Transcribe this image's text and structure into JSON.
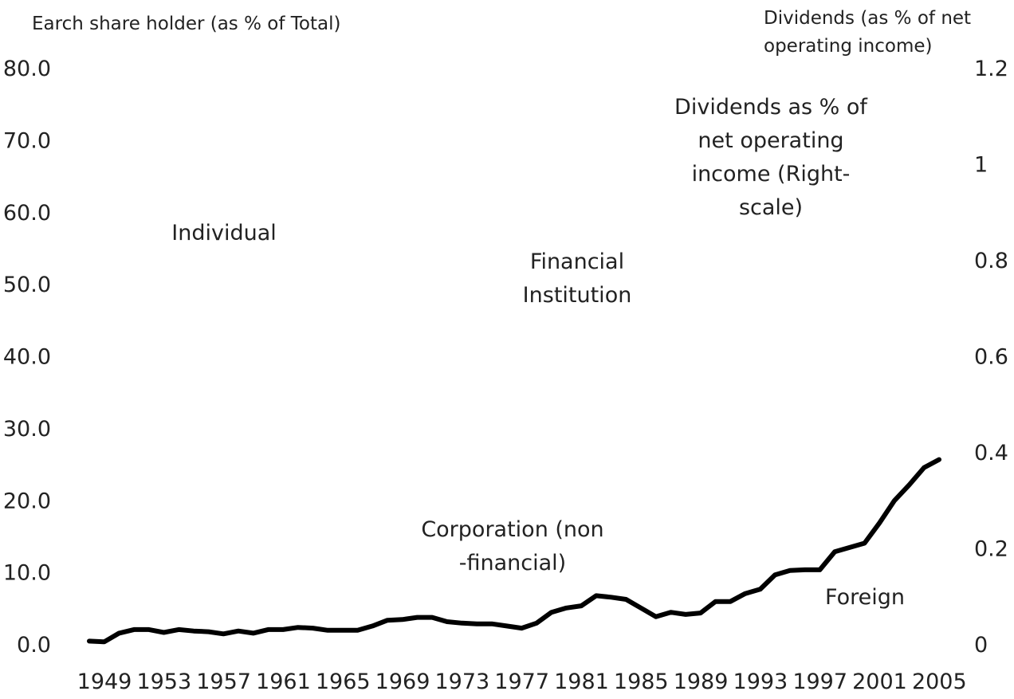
{
  "chart_data": {
    "type": "line",
    "left_axis_title": "Earch share holder (as % of Total)",
    "right_axis_title": [
      "Dividends (as % of net",
      "operating income)"
    ],
    "ylim": [
      0,
      80
    ],
    "y2lim": [
      0,
      1.2
    ],
    "yticks": [
      "0.0",
      "10.0",
      "20.0",
      "30.0",
      "40.0",
      "50.0",
      "60.0",
      "70.0",
      "80.0"
    ],
    "y2ticks": [
      "0",
      "0.2",
      "0.4",
      "0.6",
      "0.8",
      "1",
      "1.2"
    ],
    "xticks": [
      "1949",
      "1953",
      "1957",
      "1961",
      "1965",
      "1969",
      "1973",
      "1977",
      "1981",
      "1985",
      "1989",
      "1993",
      "1997",
      "2001",
      "2005"
    ],
    "annotations": [
      {
        "id": "individual",
        "lines": [
          "Individual"
        ]
      },
      {
        "id": "financial",
        "lines": [
          "Financial",
          "Institution"
        ]
      },
      {
        "id": "dividends",
        "lines": [
          "Dividends as % of",
          "net operating",
          "income (Right-",
          "scale)"
        ]
      },
      {
        "id": "corporation",
        "lines": [
          "Corporation (non",
          "-financial)"
        ]
      },
      {
        "id": "foreign",
        "lines": [
          "Foreign"
        ]
      }
    ],
    "series": [
      {
        "color": "#000000",
        "x": [
          1949,
          1950,
          1951,
          1952,
          1953,
          1954,
          1955,
          1956,
          1957,
          1958,
          1959,
          1960,
          1961,
          1962,
          1963,
          1964,
          1965,
          1966,
          1967,
          1968,
          1969,
          1970,
          1971,
          1972,
          1973,
          1974,
          1975,
          1976,
          1977,
          1978,
          1979,
          1980,
          1981,
          1982,
          1983,
          1984,
          1985,
          1986,
          1987,
          1988,
          1989,
          1990,
          1991,
          1992,
          1993,
          1994,
          1995,
          1996,
          1997,
          1998,
          1999,
          2000,
          2001,
          2002,
          2003,
          2004,
          2005,
          2006
        ],
        "values": [
          0.4,
          0.3,
          1.5,
          2.0,
          2.0,
          1.6,
          2.0,
          1.8,
          1.7,
          1.4,
          1.8,
          1.5,
          2.0,
          2.0,
          2.3,
          2.2,
          1.9,
          1.9,
          1.9,
          2.5,
          3.3,
          3.4,
          3.7,
          3.7,
          3.1,
          2.9,
          2.8,
          2.8,
          2.5,
          2.2,
          2.9,
          4.4,
          5.0,
          5.3,
          6.7,
          6.5,
          6.2,
          5.0,
          3.8,
          4.4,
          4.1,
          4.3,
          5.9,
          5.9,
          7.0,
          7.6,
          9.6,
          10.2,
          10.3,
          10.3,
          12.8,
          13.4,
          14.0,
          16.8,
          19.9,
          22.1,
          24.5,
          25.6
        ]
      }
    ]
  }
}
